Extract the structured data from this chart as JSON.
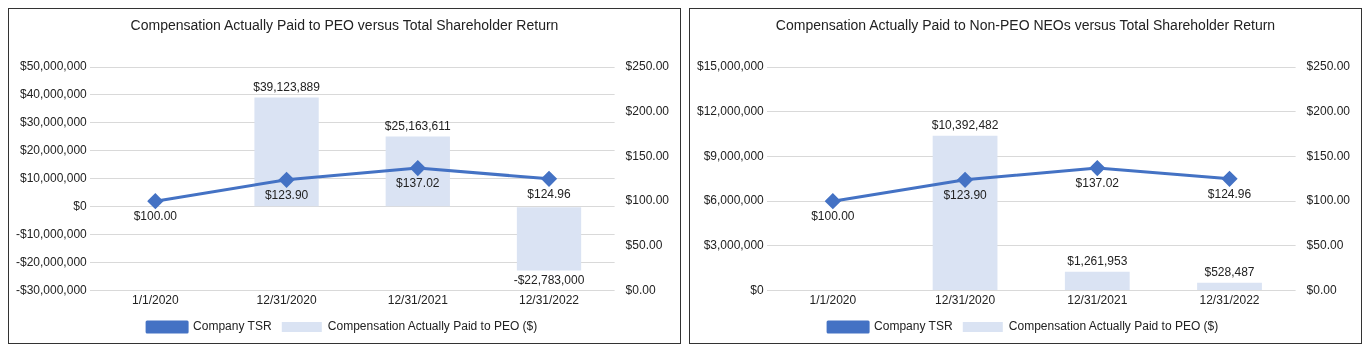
{
  "chart_data": [
    {
      "type": "bar",
      "title": "Compensation Actually Paid to PEO versus Total Shareholder Return",
      "categories": [
        "1/1/2020",
        "12/31/2020",
        "12/31/2021",
        "12/31/2022"
      ],
      "series": [
        {
          "name": "Compensation Actually Paid to PEO ($)",
          "color": "#dae3f3",
          "values": [
            null,
            39123889,
            25163611,
            -22783000
          ],
          "value_labels": [
            null,
            "$39,123,889",
            "$25,163,611",
            "-$22,783,000"
          ]
        },
        {
          "name": "Company TSR",
          "type": "line",
          "axis": "y2",
          "color": "#4472c4",
          "values": [
            100,
            123.9,
            137.02,
            124.96
          ],
          "value_labels": [
            "$100.00",
            "$123.90",
            "$137.02",
            "$124.96"
          ]
        }
      ],
      "ylim": [
        -30000000,
        50000000
      ],
      "yticks": [
        {
          "value": -30000000,
          "label": "-$30,000,000"
        },
        {
          "value": -20000000,
          "label": "-$20,000,000"
        },
        {
          "value": -10000000,
          "label": "-$10,000,000"
        },
        {
          "value": 0,
          "label": "$0"
        },
        {
          "value": 10000000,
          "label": "$10,000,000"
        },
        {
          "value": 20000000,
          "label": "$20,000,000"
        },
        {
          "value": 30000000,
          "label": "$30,000,000"
        },
        {
          "value": 40000000,
          "label": "$40,000,000"
        },
        {
          "value": 50000000,
          "label": "$50,000,000"
        }
      ],
      "y2lim": [
        0,
        250
      ],
      "y2ticks": [
        {
          "value": 0,
          "label": "$0.00"
        },
        {
          "value": 50,
          "label": "$50.00"
        },
        {
          "value": 100,
          "label": "$100.00"
        },
        {
          "value": 150,
          "label": "$150.00"
        },
        {
          "value": 200,
          "label": "$200.00"
        },
        {
          "value": 250,
          "label": "$250.00"
        }
      ],
      "grid": "y",
      "legend": "bottom",
      "marker": "diamond"
    },
    {
      "type": "bar",
      "title": "Compensation Actually Paid to Non-PEO NEOs versus Total Shareholder Return",
      "categories": [
        "1/1/2020",
        "12/31/2020",
        "12/31/2021",
        "12/31/2022"
      ],
      "series": [
        {
          "name": "Compensation Actually Paid to PEO ($)",
          "color": "#dae3f3",
          "values": [
            null,
            10392482,
            1261953,
            528487
          ],
          "value_labels": [
            null,
            "$10,392,482",
            "$1,261,953",
            "$528,487"
          ]
        },
        {
          "name": "Company TSR",
          "type": "line",
          "axis": "y2",
          "color": "#4472c4",
          "values": [
            100,
            123.9,
            137.02,
            124.96
          ],
          "value_labels": [
            "$100.00",
            "$123.90",
            "$137.02",
            "$124.96"
          ]
        }
      ],
      "ylim": [
        0,
        15000000
      ],
      "yticks": [
        {
          "value": 0,
          "label": "$0"
        },
        {
          "value": 3000000,
          "label": "$3,000,000"
        },
        {
          "value": 6000000,
          "label": "$6,000,000"
        },
        {
          "value": 9000000,
          "label": "$9,000,000"
        },
        {
          "value": 12000000,
          "label": "$12,000,000"
        },
        {
          "value": 15000000,
          "label": "$15,000,000"
        }
      ],
      "y2lim": [
        0,
        250
      ],
      "y2ticks": [
        {
          "value": 0,
          "label": "$0.00"
        },
        {
          "value": 50,
          "label": "$50.00"
        },
        {
          "value": 100,
          "label": "$100.00"
        },
        {
          "value": 150,
          "label": "$150.00"
        },
        {
          "value": 200,
          "label": "$200.00"
        },
        {
          "value": 250,
          "label": "$250.00"
        }
      ],
      "grid": "y",
      "legend": "bottom",
      "marker": "diamond"
    }
  ]
}
